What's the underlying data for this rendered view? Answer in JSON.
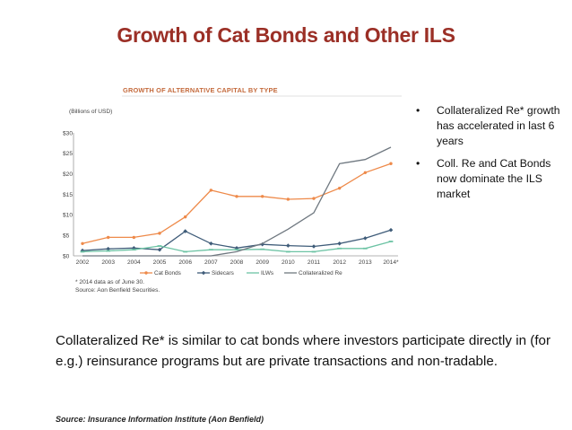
{
  "slide": {
    "title": "Growth of Cat Bonds and Other ILS",
    "bullets": [
      "Collateralized Re* growth has accelerated in last 6 years",
      "Coll. Re and Cat Bonds now dominate the ILS market"
    ],
    "bullet_symbol": "•",
    "body_text": "Collateralized Re* is similar to cat bonds where investors participate directly in (for e.g.) reinsurance programs  but are private transactions and non-tradable.",
    "source": "Source: Insurance Information Institute (Aon Benfield)"
  },
  "chart_data": {
    "type": "line",
    "title": "GROWTH OF ALTERNATIVE CAPITAL BY TYPE",
    "ylabel": "(Billions of USD)",
    "xlabel": "",
    "categories": [
      "2002",
      "2003",
      "2004",
      "2005",
      "2006",
      "2007",
      "2008",
      "2009",
      "2010",
      "2011",
      "2012",
      "2013",
      "2014*"
    ],
    "ylim": [
      0,
      30
    ],
    "yticks": [
      0,
      5,
      10,
      15,
      20,
      25,
      30
    ],
    "ytick_labels": [
      "$0",
      "$5",
      "$10",
      "$15",
      "$20",
      "$25",
      "$30"
    ],
    "grid": false,
    "legend_position": "bottom",
    "series": [
      {
        "name": "Cat Bonds",
        "color": "#ee8a4a",
        "marker": "circle",
        "values": [
          3.0,
          4.5,
          4.5,
          5.5,
          9.5,
          16.0,
          14.5,
          14.5,
          13.8,
          14.0,
          16.5,
          20.3,
          22.5
        ]
      },
      {
        "name": "Sidecars",
        "color": "#3f5c79",
        "marker": "diamond",
        "values": [
          1.3,
          1.7,
          1.9,
          1.5,
          6.0,
          3.0,
          1.9,
          2.8,
          2.5,
          2.3,
          3.0,
          4.3,
          6.3
        ]
      },
      {
        "name": "ILWs",
        "color": "#6cc3a4",
        "marker": "dash",
        "values": [
          1.0,
          1.2,
          1.5,
          2.4,
          1.0,
          1.5,
          1.5,
          1.6,
          1.0,
          1.0,
          1.8,
          1.8,
          3.5
        ]
      },
      {
        "name": "Collateralized Re",
        "color": "#6f7880",
        "marker": "none",
        "values": [
          0.0,
          0.0,
          0.0,
          0.0,
          0.0,
          0.0,
          1.0,
          3.0,
          6.5,
          10.5,
          22.5,
          23.5,
          26.5
        ]
      }
    ],
    "footnotes": [
      "* 2014 data as of June 30.",
      "Source: Aon Benfield Securities."
    ]
  }
}
